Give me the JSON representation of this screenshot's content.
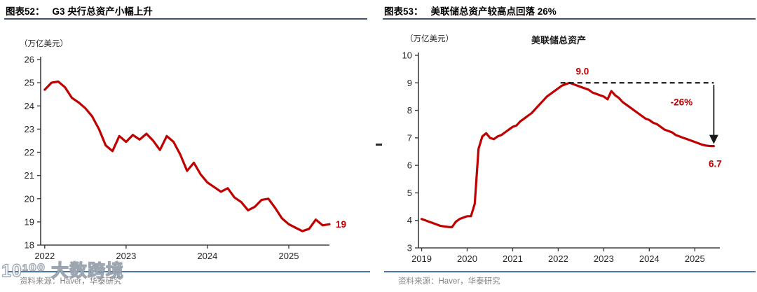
{
  "figures": [
    {
      "id": "g3",
      "title_prefix": "图表52：",
      "title": "G3 央行总资产小幅上升",
      "unit": "（万亿美元）",
      "source": "资料来源：Haver，华泰研究"
    },
    {
      "id": "fed",
      "title_prefix": "图表53：",
      "title": "美联储总资产较高点回落 26%",
      "unit": "（万亿美元）",
      "inner_title": "美联储总资产",
      "source": "资料来源：Haver，华泰研究"
    }
  ],
  "watermark": {
    "text": "10¹⁰⁰ 大数跨境"
  },
  "colors": {
    "line_red": "#C00000",
    "annotation_red": "#C00000",
    "title_rule": "#44546A",
    "bottom_rule": "#4a74a8",
    "axis": "#404040",
    "tick_text": "#262626",
    "source_text": "#848484",
    "dash_black": "#1a1a1a"
  },
  "chart_data": [
    {
      "type": "line",
      "title": "图表52: G3 央行总资产小幅上升",
      "ylabel": "（万亿美元）",
      "ylim": [
        18,
        26
      ],
      "ytick_step": 1,
      "x_ticks": [
        2022,
        2023,
        2024,
        2025
      ],
      "x_domain": [
        2021.95,
        2025.5
      ],
      "grid": false,
      "line_color": "#C00000",
      "end_label": "19",
      "series": [
        {
          "name": "G3央行总资产",
          "x_start": 2022,
          "x_step_years": 0.08333,
          "values": [
            24.7,
            25.0,
            25.05,
            24.8,
            24.35,
            24.15,
            23.9,
            23.55,
            23.0,
            22.3,
            22.05,
            22.7,
            22.45,
            22.75,
            22.55,
            22.8,
            22.5,
            22.1,
            22.7,
            22.45,
            21.9,
            21.2,
            21.55,
            21.05,
            20.7,
            20.5,
            20.3,
            20.45,
            20.05,
            19.85,
            19.5,
            19.65,
            19.95,
            20.0,
            19.6,
            19.15,
            18.9,
            18.75,
            18.6,
            18.7,
            19.1,
            18.85,
            18.9
          ]
        }
      ]
    },
    {
      "type": "line",
      "title": "图表53: 美联储总资产较高点回落 26%",
      "inner_title": "美联储总资产",
      "ylabel": "（万亿美元）",
      "ylim": [
        3,
        10
      ],
      "ytick_step": 1,
      "x_ticks": [
        2019,
        2020,
        2021,
        2022,
        2023,
        2024,
        2025
      ],
      "x_domain": [
        2018.93,
        2025.55
      ],
      "grid": false,
      "line_color": "#C00000",
      "annotations": {
        "peak_label": "9.0",
        "peak_value": 9.0,
        "peak_x": 2022.3,
        "dash_start_x": 2022.05,
        "drop_label": "-26%",
        "end_label": "6.7",
        "end_value": 6.7,
        "end_x": 2025.417
      },
      "series": [
        {
          "name": "美联储总资产",
          "x_start": 2019,
          "x_step_years": 0.08333,
          "values": [
            4.05,
            4.0,
            3.95,
            3.9,
            3.85,
            3.8,
            3.78,
            3.76,
            3.75,
            3.95,
            4.05,
            4.1,
            4.15,
            4.15,
            4.6,
            6.6,
            7.05,
            7.17,
            7.0,
            6.95,
            7.05,
            7.1,
            7.2,
            7.3,
            7.4,
            7.45,
            7.6,
            7.7,
            7.8,
            7.9,
            8.05,
            8.2,
            8.35,
            8.5,
            8.6,
            8.7,
            8.8,
            8.9,
            8.95,
            9.0,
            8.95,
            8.9,
            8.85,
            8.8,
            8.75,
            8.65,
            8.6,
            8.55,
            8.5,
            8.4,
            8.7,
            8.55,
            8.45,
            8.3,
            8.2,
            8.1,
            8.0,
            7.9,
            7.8,
            7.7,
            7.65,
            7.55,
            7.5,
            7.4,
            7.3,
            7.25,
            7.2,
            7.1,
            7.05,
            7.0,
            6.95,
            6.9,
            6.85,
            6.8,
            6.75,
            6.72,
            6.7,
            6.7
          ]
        }
      ]
    }
  ]
}
